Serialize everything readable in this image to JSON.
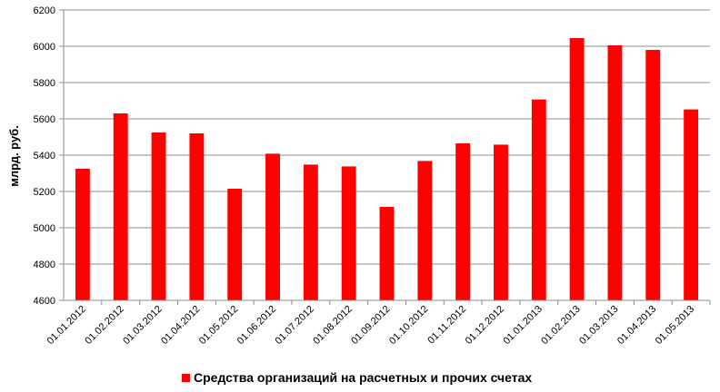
{
  "chart_data": {
    "type": "bar",
    "title": "",
    "xlabel": "",
    "ylabel": "млрд. руб.",
    "ylim": [
      4600,
      6200
    ],
    "yticks": [
      4600,
      4800,
      5000,
      5200,
      5400,
      5600,
      5800,
      6000,
      6200
    ],
    "grid": true,
    "legend_position": "bottom",
    "categories": [
      "01.01.2012",
      "01.02.2012",
      "01.03.2012",
      "01.04.2012",
      "01.05.2012",
      "01.06.2012",
      "01.07.2012",
      "01.08.2012",
      "01.09.2012",
      "01.10.2012",
      "01.11.2012",
      "01.12.2012",
      "01.01.2013",
      "01.02.2013",
      "01.03.2013",
      "01.04.2013",
      "01.05.2013"
    ],
    "series": [
      {
        "name": "Средства организаций на расчетных и прочих счетах",
        "color": "#ff0000",
        "values": [
          5325,
          5630,
          5525,
          5520,
          5215,
          5408,
          5348,
          5338,
          5115,
          5368,
          5465,
          5458,
          5707,
          6045,
          6005,
          5980,
          5652
        ]
      }
    ]
  }
}
